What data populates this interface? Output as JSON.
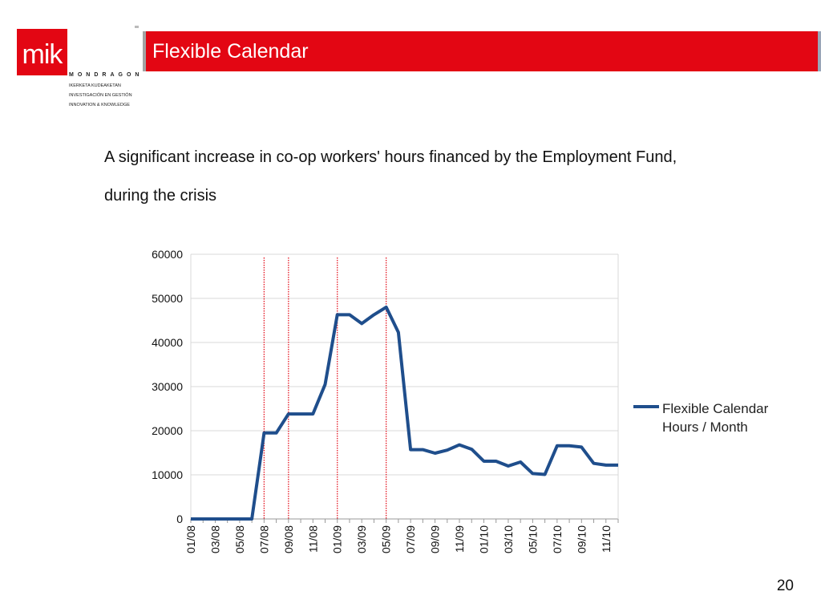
{
  "header": {
    "logo_text": "mik",
    "org_name": "MONDRAGON",
    "org_lines": [
      "IKERKETA KUDEAKETAN",
      "INVESTIGACIÓN EN GESTIÓN",
      "INNOVATION & KNOWLEDGE"
    ],
    "title": "Flexible Calendar"
  },
  "subtitle": "A significant increase in co-op workers' hours financed by the Employment Fund, during the crisis",
  "page_number": "20",
  "colors": {
    "accent": "#e30613",
    "series": "#1f4e8c",
    "marker_lines": "#e30613"
  },
  "chart_data": {
    "type": "line",
    "title": "",
    "xlabel": "",
    "ylabel": "",
    "ylim": [
      0,
      60000
    ],
    "yticks": [
      0,
      10000,
      20000,
      30000,
      40000,
      50000,
      60000
    ],
    "xtick_labels": [
      "01/08",
      "03/08",
      "05/08",
      "07/08",
      "09/08",
      "11/08",
      "01/09",
      "03/09",
      "05/09",
      "07/09",
      "09/09",
      "11/09",
      "01/10",
      "03/10",
      "05/10",
      "07/10",
      "09/10",
      "11/10"
    ],
    "x": [
      "01/08",
      "02/08",
      "03/08",
      "04/08",
      "05/08",
      "06/08",
      "07/08",
      "08/08",
      "09/08",
      "10/08",
      "11/08",
      "12/08",
      "01/09",
      "02/09",
      "03/09",
      "04/09",
      "05/09",
      "06/09",
      "07/09",
      "08/09",
      "09/09",
      "10/09",
      "11/09",
      "12/09",
      "01/10",
      "02/10",
      "03/10",
      "04/10",
      "05/10",
      "06/10",
      "07/10",
      "08/10",
      "09/10",
      "10/10",
      "11/10",
      "12/10"
    ],
    "series": [
      {
        "name": "Flexible Calendar Hours / Month",
        "values": [
          0,
          0,
          0,
          0,
          0,
          0,
          19500,
          19500,
          23800,
          23800,
          23800,
          30500,
          46300,
          46300,
          44300,
          46300,
          48000,
          42300,
          15700,
          15700,
          14900,
          15600,
          16800,
          15800,
          13100,
          13100,
          12000,
          12900,
          10300,
          10100,
          16600,
          16600,
          16300,
          12600,
          12200,
          12200
        ]
      }
    ],
    "vertical_markers": [
      "07/08",
      "09/08",
      "01/09",
      "05/09"
    ],
    "grid": true,
    "legend_position": "right"
  }
}
